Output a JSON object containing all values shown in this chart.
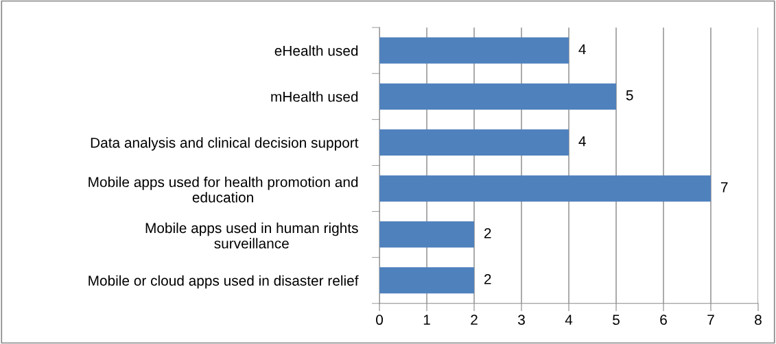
{
  "chart_data": {
    "type": "bar",
    "orientation": "horizontal",
    "categories": [
      "eHealth used",
      "mHealth used",
      "Data analysis and clinical decision support",
      "Mobile apps used for health promotion and\neducation",
      "Mobile apps used in human rights\nsurveillance",
      "Mobile or cloud apps used in disaster relief"
    ],
    "values": [
      4,
      5,
      4,
      7,
      2,
      2
    ],
    "color": "#4f81bd",
    "xlim": [
      0,
      8
    ],
    "xticks": [
      0,
      1,
      2,
      3,
      4,
      5,
      6,
      7,
      8
    ],
    "grid": "x",
    "data_labels": true,
    "legend": false
  }
}
